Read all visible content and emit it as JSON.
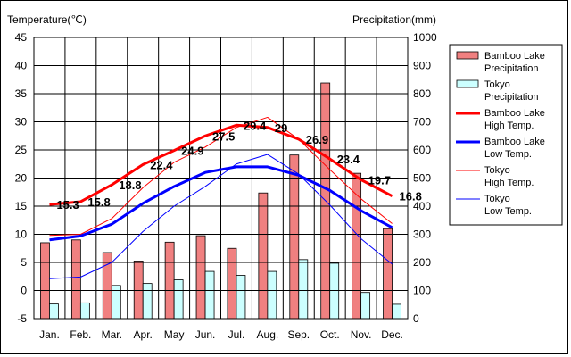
{
  "chart_data": {
    "type": "bar",
    "categories": [
      "Jan.",
      "Feb.",
      "Mar.",
      "Apr.",
      "May",
      "Jun.",
      "Jul.",
      "Aug.",
      "Sep.",
      "Oct.",
      "Nov.",
      "Dec."
    ],
    "y_left": {
      "label": "Temperature(℃)",
      "range": [
        -5,
        45
      ],
      "ticks": [
        45,
        40,
        35,
        30,
        25,
        20,
        15,
        10,
        5,
        0,
        -5
      ]
    },
    "y_right": {
      "label": "Precipitation(mm)",
      "range": [
        0,
        1000
      ],
      "ticks": [
        1000,
        900,
        800,
        700,
        600,
        500,
        400,
        300,
        200,
        100,
        0
      ]
    },
    "grid": true,
    "legend_position": "right",
    "bar_series": [
      {
        "name": "Bamboo Lake Precipitation",
        "legend_lines": [
          "Bamboo Lake",
          "Precipitation"
        ],
        "color": "#f08080",
        "axis": "right",
        "values": [
          270,
          280,
          235,
          205,
          272,
          295,
          250,
          447,
          582,
          838,
          517,
          320
        ]
      },
      {
        "name": "Tokyo Precipitation",
        "legend_lines": [
          "Tokyo",
          "Precipitation"
        ],
        "color": "#ccffff",
        "axis": "right",
        "values": [
          52,
          56,
          118,
          125,
          138,
          168,
          154,
          168,
          210,
          197,
          93,
          51
        ]
      }
    ],
    "line_series": [
      {
        "name": "Bamboo Lake High Temp.",
        "legend_lines": [
          "Bamboo Lake",
          "High Temp."
        ],
        "color": "#ff0000",
        "width": 3,
        "axis": "left",
        "values": [
          15.3,
          15.8,
          18.8,
          22.4,
          24.9,
          27.5,
          29.4,
          29.0,
          26.9,
          23.4,
          19.7,
          16.8
        ],
        "labels": [
          "15.3",
          "15.8",
          "18.8",
          "22.4",
          "24.9",
          "27.5",
          "29.4",
          "29",
          "26.9",
          "23.4",
          "19.7",
          "16.8"
        ]
      },
      {
        "name": "Bamboo Lake Low Temp.",
        "legend_lines": [
          "Bamboo Lake",
          "Low Temp."
        ],
        "color": "#0000ff",
        "width": 3,
        "axis": "left",
        "values": [
          9.0,
          9.7,
          11.8,
          15.5,
          18.5,
          21.0,
          22.0,
          22.0,
          20.5,
          17.8,
          14.2,
          11.2
        ]
      },
      {
        "name": "Tokyo High Temp.",
        "legend_lines": [
          "Tokyo",
          "High Temp."
        ],
        "color": "#ff0000",
        "width": 1,
        "axis": "left",
        "values": [
          9.8,
          10.0,
          12.8,
          18.3,
          22.8,
          25.5,
          29.0,
          30.8,
          26.9,
          21.5,
          16.3,
          11.9
        ]
      },
      {
        "name": "Tokyo Low Temp.",
        "legend_lines": [
          "Tokyo",
          "Low Temp."
        ],
        "color": "#0000ff",
        "width": 1,
        "axis": "left",
        "values": [
          2.1,
          2.4,
          5.0,
          10.5,
          15.0,
          18.5,
          22.5,
          24.2,
          20.7,
          15.2,
          9.2,
          4.7
        ]
      }
    ]
  }
}
